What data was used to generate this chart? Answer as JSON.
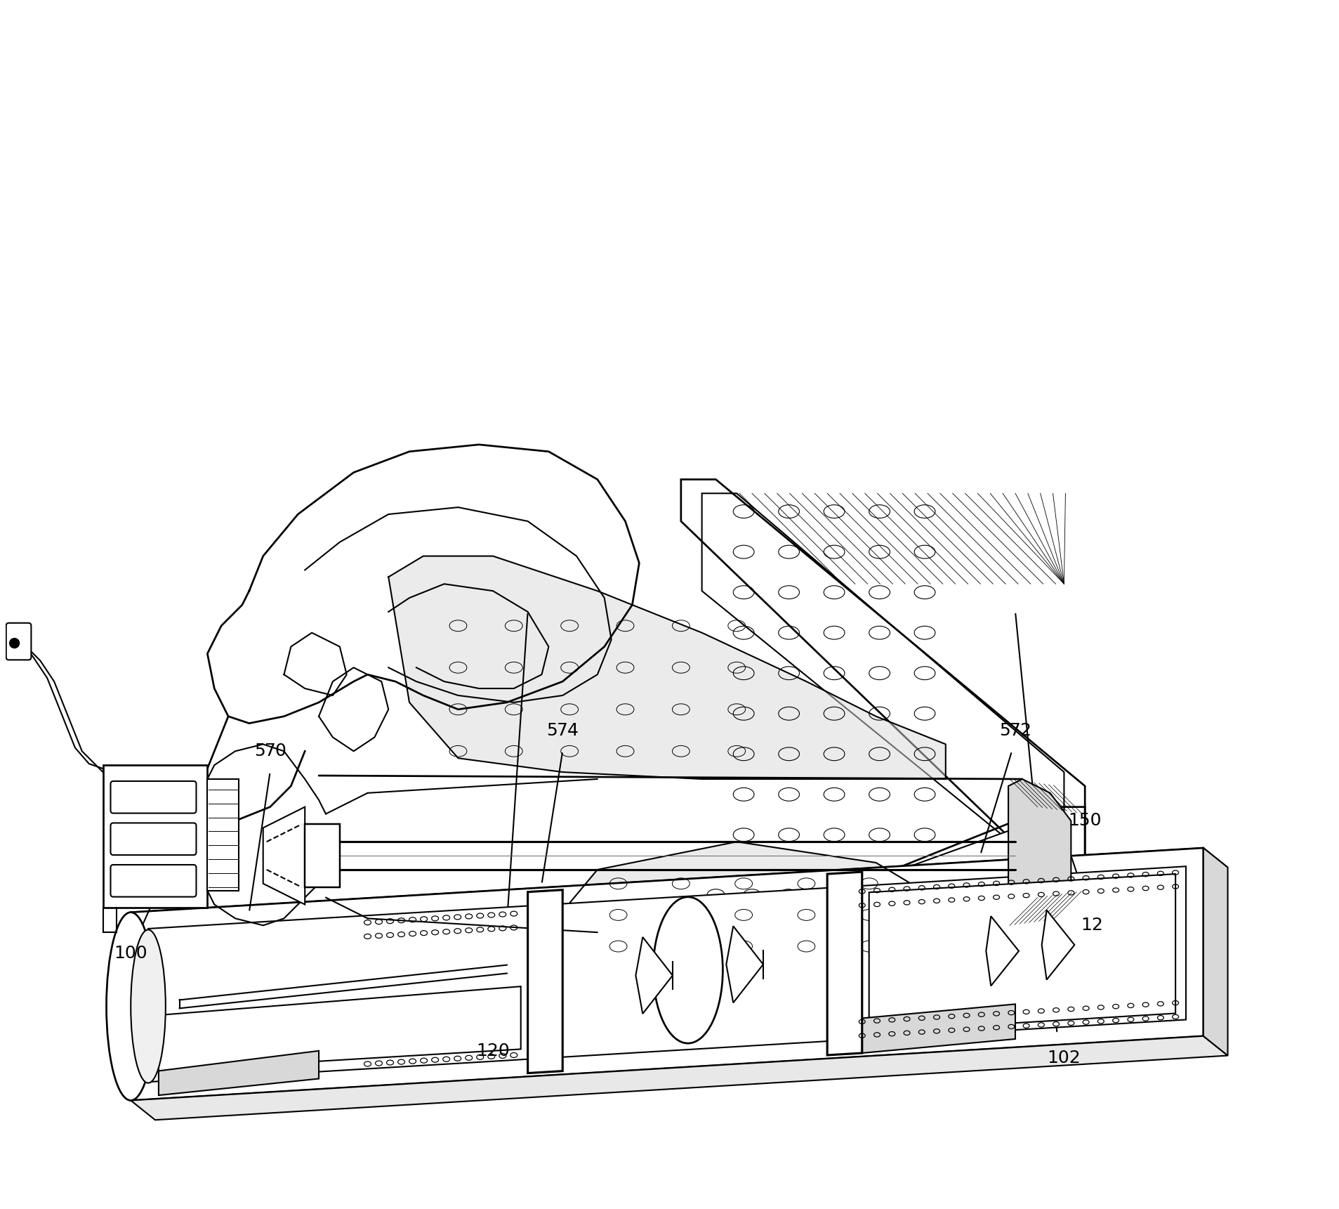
{
  "background_color": "#ffffff",
  "line_color": "#000000",
  "line_width": 1.5,
  "label_fontsize": 18,
  "figsize": [
    19.07,
    17.21
  ],
  "dpi": 100
}
